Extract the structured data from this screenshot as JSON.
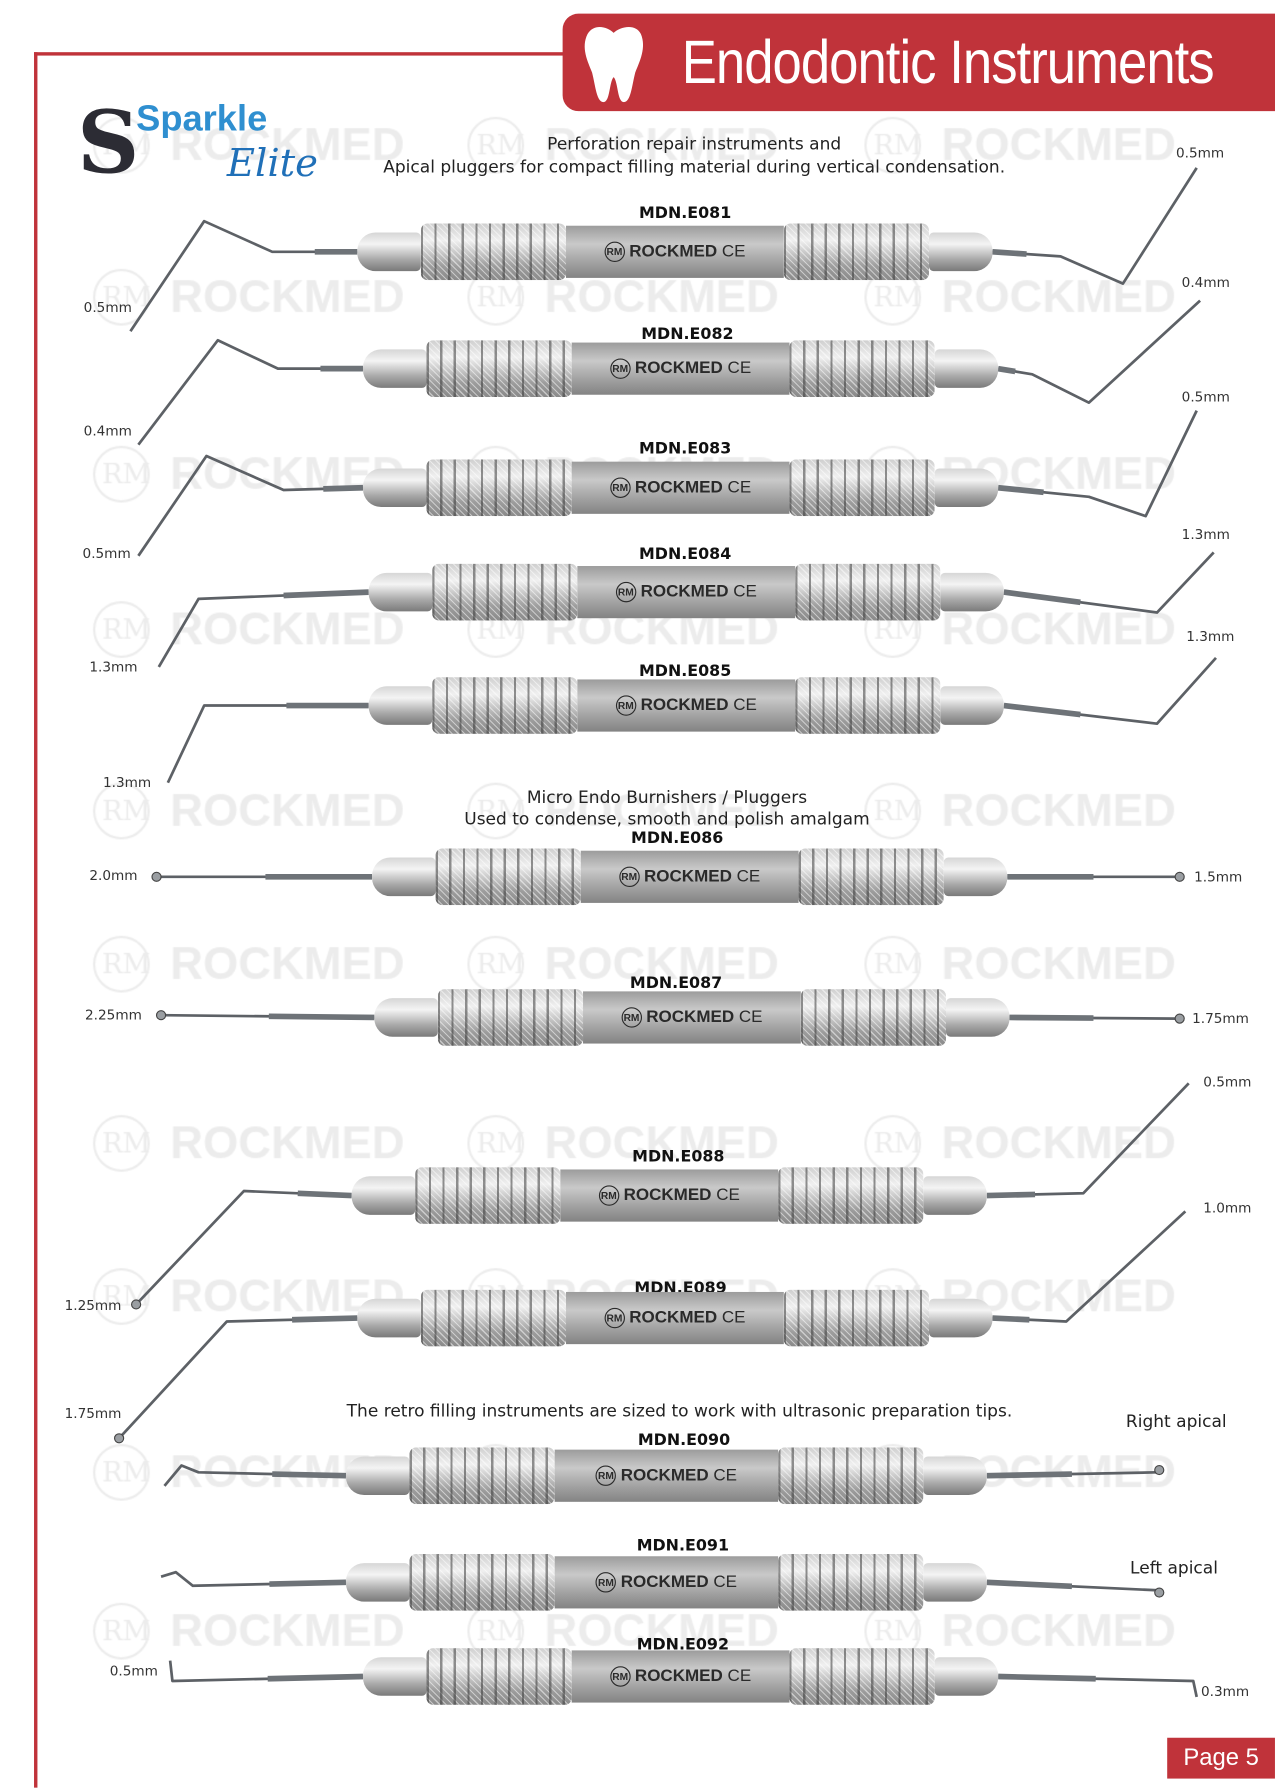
{
  "header": {
    "title": "Endodontic Instruments"
  },
  "logo": {
    "line1": "Sparkle",
    "line2": "Elite",
    "initial": "S"
  },
  "watermark": {
    "text": "ROCKMED",
    "monogram": "RM"
  },
  "sections": [
    {
      "lines": [
        "Perforation repair instruments and",
        "Apical pluggers for compact filling material during vertical condensation."
      ]
    },
    {
      "lines": [
        "Micro Endo Burnishers / Pluggers",
        "Used to condense, smooth and polish amalgam"
      ]
    },
    {
      "lines": [
        "The retro filling instruments are sized to work with ultrasonic preparation tips."
      ]
    }
  ],
  "handle_brand": {
    "name": "ROCKMED",
    "mark": "CE",
    "monogram": "RM"
  },
  "instruments": [
    {
      "code": "MDN.E081",
      "left_size": "0.5mm",
      "right_size": "0.5mm"
    },
    {
      "code": "MDN.E082",
      "left_size": "0.4mm",
      "right_size": "0.4mm"
    },
    {
      "code": "MDN.E083",
      "left_size": "0.5mm",
      "right_size": "0.5mm"
    },
    {
      "code": "MDN.E084",
      "left_size": "1.3mm",
      "right_size": "1.3mm"
    },
    {
      "code": "MDN.E085",
      "left_size": "1.3mm",
      "right_size": "1.3mm"
    },
    {
      "code": "MDN.E086",
      "left_size": "2.0mm",
      "right_size": "1.5mm"
    },
    {
      "code": "MDN.E087",
      "left_size": "2.25mm",
      "right_size": "1.75mm"
    },
    {
      "code": "MDN.E088",
      "left_size": "1.25mm",
      "right_size": "0.5mm"
    },
    {
      "code": "MDN.E089",
      "left_size": "1.75mm",
      "right_size": "1.0mm"
    },
    {
      "code": "MDN.E090",
      "right_size": "Right apical"
    },
    {
      "code": "MDN.E091",
      "right_size": "Left apical"
    },
    {
      "code": "MDN.E092",
      "left_size": "0.5mm",
      "right_size": "0.3mm"
    }
  ],
  "footer": {
    "page": "Page 5"
  },
  "colors": {
    "accent": "#c0333a"
  }
}
